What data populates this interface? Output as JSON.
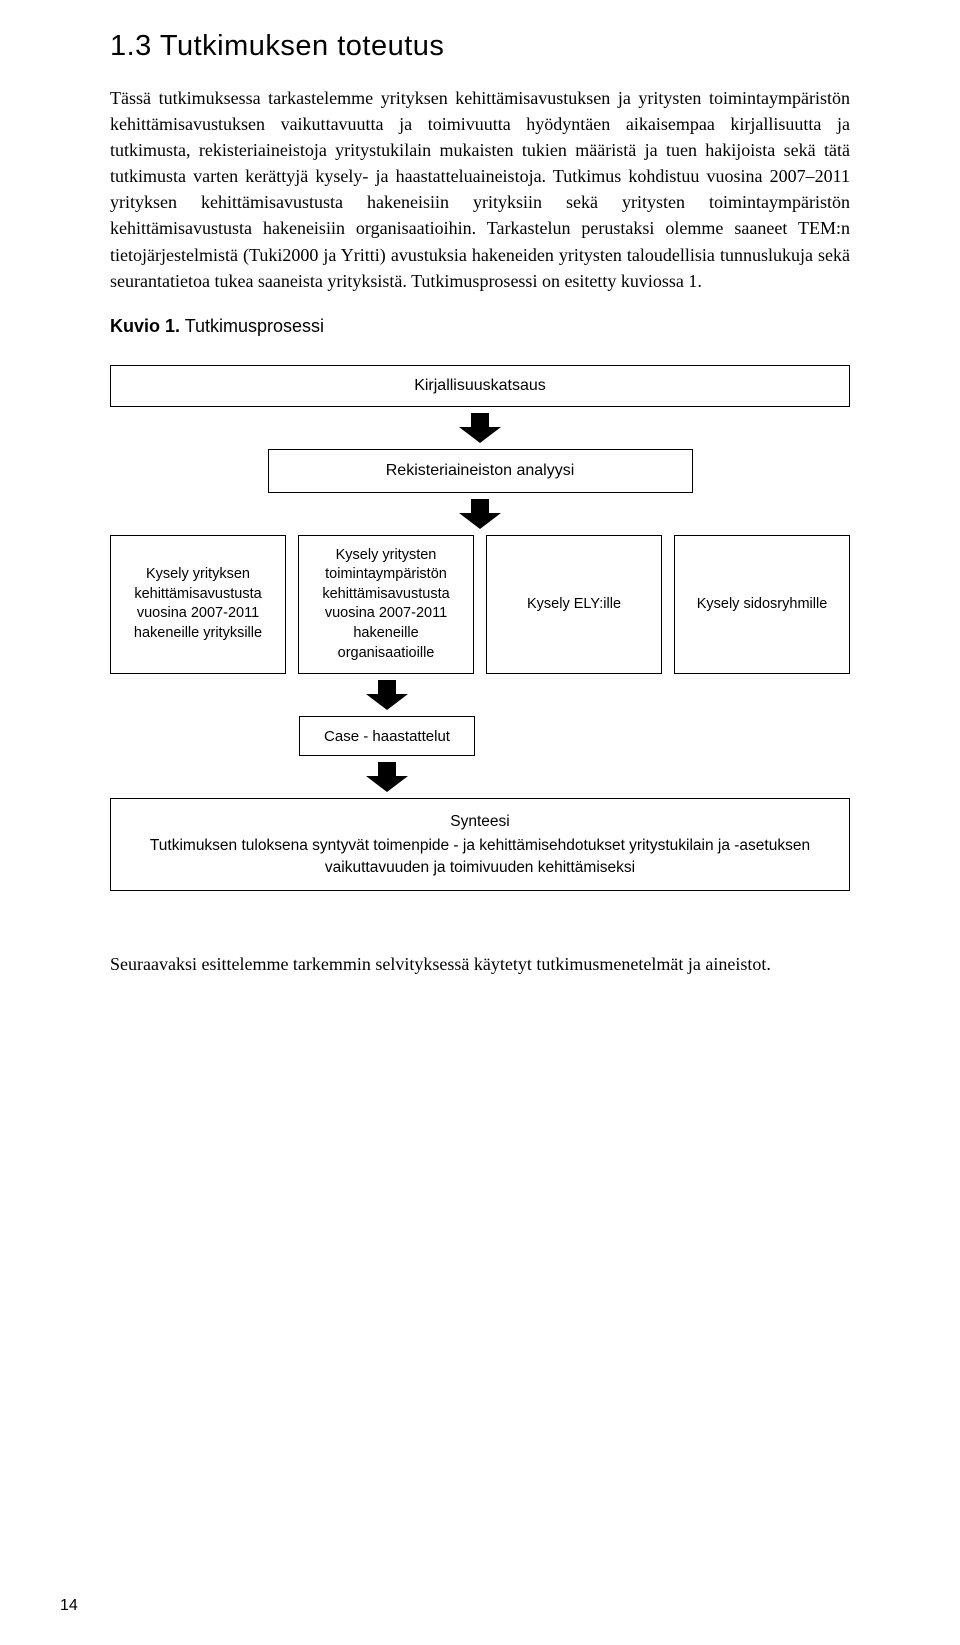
{
  "heading": "1.3 Tutkimuksen toteutus",
  "paragraph": "Tässä tutkimuksessa tarkastelemme yrityksen kehittämisavustuksen ja yritysten toimintaympäristön kehittämisavustuksen vaikuttavuutta ja toimivuutta hyödyntäen aikaisempaa kirjallisuutta ja tutkimusta, rekisteriaineistoja yritystukilain mukaisten tukien määristä ja tuen hakijoista sekä tätä tutkimusta varten kerättyjä kysely- ja haastatteluaineistoja. Tutkimus kohdistuu vuosina 2007–2011 yrityksen kehittämisavustusta hakeneisiin yrityksiin sekä yritysten toimintaympäristön kehittämisavustusta hakeneisiin organisaatioihin. Tarkastelun perustaksi olemme saaneet TEM:n tietojärjestelmistä (Tuki2000 ja Yritti) avustuksia hakeneiden yritysten taloudellisia tunnuslukuja sekä seurantatietoa tukea saaneista yrityksistä. Tutkimusprosessi on esitetty kuviossa 1.",
  "figure_label_bold": "Kuvio 1.",
  "figure_label_rest": " Tutkimusprosessi",
  "flow": {
    "step1": "Kirjallisuuskatsaus",
    "step2": "Rekisteriaineiston analyysi",
    "row": {
      "a": "Kysely yrityksen kehittämisavustusta vuosina 2007-2011 hakeneille yrityksille",
      "b": "Kysely yritysten toimintaympäristön kehittämisavustusta vuosina 2007-2011 hakeneille organisaatioille",
      "c": "Kysely ELY:ille",
      "d": "Kysely sidosryhmille"
    },
    "case": "Case - haastattelut",
    "synth_title": "Synteesi",
    "synth_body": "Tutkimuksen tuloksena syntyvät toimenpide - ja kehittämisehdotukset yritystukilain ja -asetuksen vaikuttavuuden ja toimivuuden kehittämiseksi"
  },
  "closing": "Seuraavaksi esittelemme tarkemmin selvityksessä käytetyt tutkimusmenetelmät ja aineistot.",
  "page_number": "14",
  "colors": {
    "text": "#000000",
    "background": "#ffffff",
    "border": "#000000",
    "arrow": "#000000"
  },
  "typography": {
    "heading_font": "Arial",
    "heading_size_pt": 22,
    "body_font": "Georgia",
    "body_size_pt": 13,
    "box_font": "Arial",
    "box_size_pt": 12
  }
}
